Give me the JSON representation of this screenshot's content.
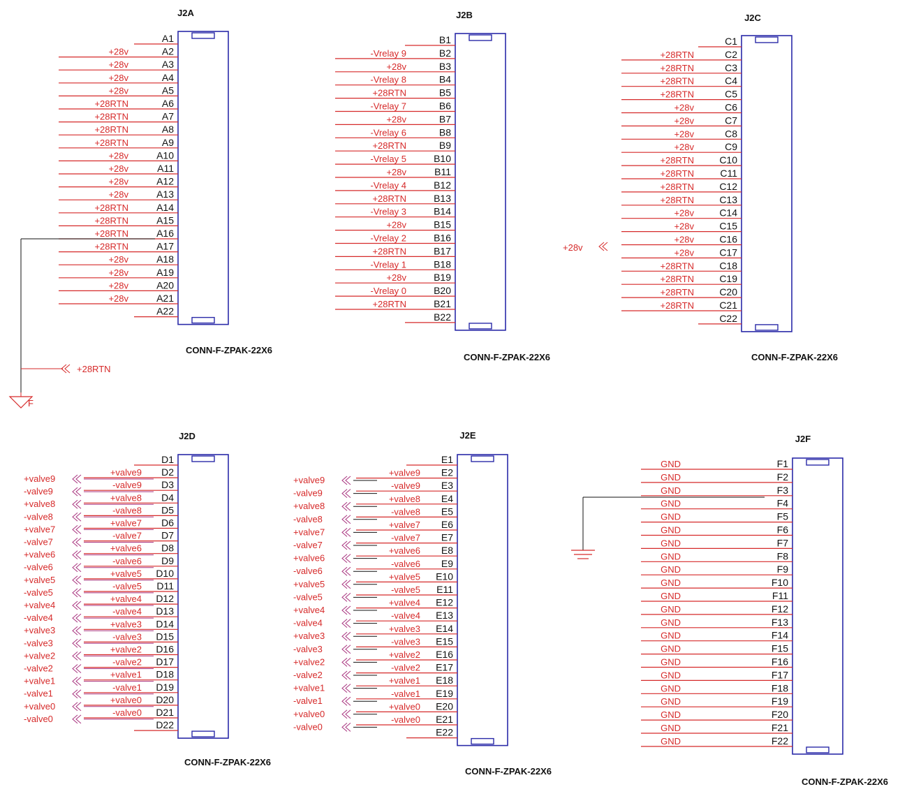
{
  "colors": {
    "wire": "#d62a2a",
    "body": "#2a2aa8",
    "pin_text": "#111111",
    "net_text": "#d62a2a",
    "label_wire": "#a8327e"
  },
  "connectors": [
    {
      "id": "J2A",
      "ref": "J2A",
      "part": "CONN-F-ZPAK-22X6",
      "pins": [
        "A1",
        "A2",
        "A3",
        "A4",
        "A5",
        "A6",
        "A7",
        "A8",
        "A9",
        "A10",
        "A11",
        "A12",
        "A13",
        "A14",
        "A15",
        "A16",
        "A17",
        "A18",
        "A19",
        "A20",
        "A21",
        "A22"
      ],
      "nets": [
        "",
        "+28v",
        "+28v",
        "+28v",
        "+28v",
        "+28RTN",
        "+28RTN",
        "+28RTN",
        "+28RTN",
        "+28v",
        "+28v",
        "+28v",
        "+28v",
        "+28RTN",
        "+28RTN",
        "+28RTN",
        "+28RTN",
        "+28v",
        "+28v",
        "+28v",
        "+28v",
        ""
      ]
    },
    {
      "id": "J2B",
      "ref": "J2B",
      "part": "CONN-F-ZPAK-22X6",
      "pins": [
        "B1",
        "B2",
        "B3",
        "B4",
        "B5",
        "B6",
        "B7",
        "B8",
        "B9",
        "B10",
        "B11",
        "B12",
        "B13",
        "B14",
        "B15",
        "B16",
        "B17",
        "B18",
        "B19",
        "B20",
        "B21",
        "B22"
      ],
      "nets": [
        "",
        "-Vrelay 9",
        "+28v",
        "-Vrelay 8",
        "+28RTN",
        "-Vrelay 7",
        "+28v",
        "-Vrelay 6",
        "+28RTN",
        "-Vrelay 5",
        "+28v",
        "-Vrelay 4",
        "+28RTN",
        "-Vrelay 3",
        "+28v",
        "-Vrelay 2",
        "+28RTN",
        "-Vrelay 1",
        "+28v",
        "-Vrelay 0",
        "+28RTN",
        ""
      ]
    },
    {
      "id": "J2C",
      "ref": "J2C",
      "part": "CONN-F-ZPAK-22X6",
      "pins": [
        "C1",
        "C2",
        "C3",
        "C4",
        "C5",
        "C6",
        "C7",
        "C8",
        "C9",
        "C10",
        "C11",
        "C12",
        "C13",
        "C14",
        "C15",
        "C16",
        "C17",
        "C18",
        "C19",
        "C20",
        "C21",
        "C22"
      ],
      "nets": [
        "",
        "+28RTN",
        "+28RTN",
        "+28RTN",
        "+28RTN",
        "+28v",
        "+28v",
        "+28v",
        "+28v",
        "+28RTN",
        "+28RTN",
        "+28RTN",
        "+28RTN",
        "+28v",
        "+28v",
        "+28v",
        "+28v",
        "+28RTN",
        "+28RTN",
        "+28RTN",
        "+28RTN",
        ""
      ]
    },
    {
      "id": "J2D",
      "ref": "J2D",
      "part": "CONN-F-ZPAK-22X6",
      "pins": [
        "D1",
        "D2",
        "D3",
        "D4",
        "D5",
        "D6",
        "D7",
        "D8",
        "D9",
        "D10",
        "D11",
        "D12",
        "D13",
        "D14",
        "D15",
        "D16",
        "D17",
        "D18",
        "D19",
        "D20",
        "D21",
        "D22"
      ],
      "nets": [
        "",
        "+valve9",
        "-valve9",
        "+valve8",
        "-valve8",
        "+valve7",
        "-valve7",
        "+valve6",
        "-valve6",
        "+valve5",
        "-valve5",
        "+valve4",
        "-valve4",
        "+valve3",
        "-valve3",
        "+valve2",
        "-valve2",
        "+valve1",
        "-valve1",
        "+valve0",
        "-valve0",
        ""
      ]
    },
    {
      "id": "J2E",
      "ref": "J2E",
      "part": "CONN-F-ZPAK-22X6",
      "pins": [
        "E1",
        "E2",
        "E3",
        "E4",
        "E5",
        "E6",
        "E7",
        "E8",
        "E9",
        "E10",
        "E11",
        "E12",
        "E13",
        "E14",
        "E15",
        "E16",
        "E17",
        "E18",
        "E19",
        "E20",
        "E21",
        "E22"
      ],
      "nets": [
        "",
        "+valve9",
        "-valve9",
        "+valve8",
        "-valve8",
        "+valve7",
        "-valve7",
        "+valve6",
        "-valve6",
        "+valve5",
        "-valve5",
        "+valve4",
        "-valve4",
        "+valve3",
        "-valve3",
        "+valve2",
        "-valve2",
        "+valve1",
        "-valve1",
        "+valve0",
        "-valve0",
        ""
      ]
    },
    {
      "id": "J2F",
      "ref": "J2F",
      "part": "CONN-F-ZPAK-22X6",
      "pins": [
        "F1",
        "F2",
        "F3",
        "F4",
        "F5",
        "F6",
        "F7",
        "F8",
        "F9",
        "F10",
        "F11",
        "F12",
        "F13",
        "F14",
        "F15",
        "F16",
        "F17",
        "F18",
        "F19",
        "F20",
        "F21",
        "F22"
      ],
      "nets": [
        "GND",
        "GND",
        "GND",
        "GND",
        "GND",
        "GND",
        "GND",
        "GND",
        "GND",
        "GND",
        "GND",
        "GND",
        "GND",
        "GND",
        "GND",
        "GND",
        "GND",
        "GND",
        "GND",
        "GND",
        "GND",
        "GND"
      ]
    }
  ],
  "offpage": {
    "j2a_rtn": "+28RTN",
    "j2c_28v": "+28v",
    "j2d_left": [
      "+valve9",
      "-valve9",
      "+valve8",
      "-valve8",
      "+valve7",
      "-valve7",
      "+valve6",
      "-valve6",
      "+valve5",
      "-valve5",
      "+valve4",
      "-valve4",
      "+valve3",
      "-valve3",
      "+valve2",
      "-valve2",
      "+valve1",
      "-valve1",
      "+valve0",
      "-valve0"
    ],
    "j2e_left": [
      "+valve9",
      "-valve9",
      "+valve8",
      "-valve8",
      "+valve7",
      "-valve7",
      "+valve6",
      "-valve6",
      "+valve5",
      "-valve5",
      "+valve4",
      "-valve4",
      "+valve3",
      "-valve3",
      "+valve2",
      "-valve2",
      "+valve1",
      "-valve1",
      "+valve0",
      "-valve0"
    ]
  },
  "ground_labels": {
    "frame": "F"
  }
}
